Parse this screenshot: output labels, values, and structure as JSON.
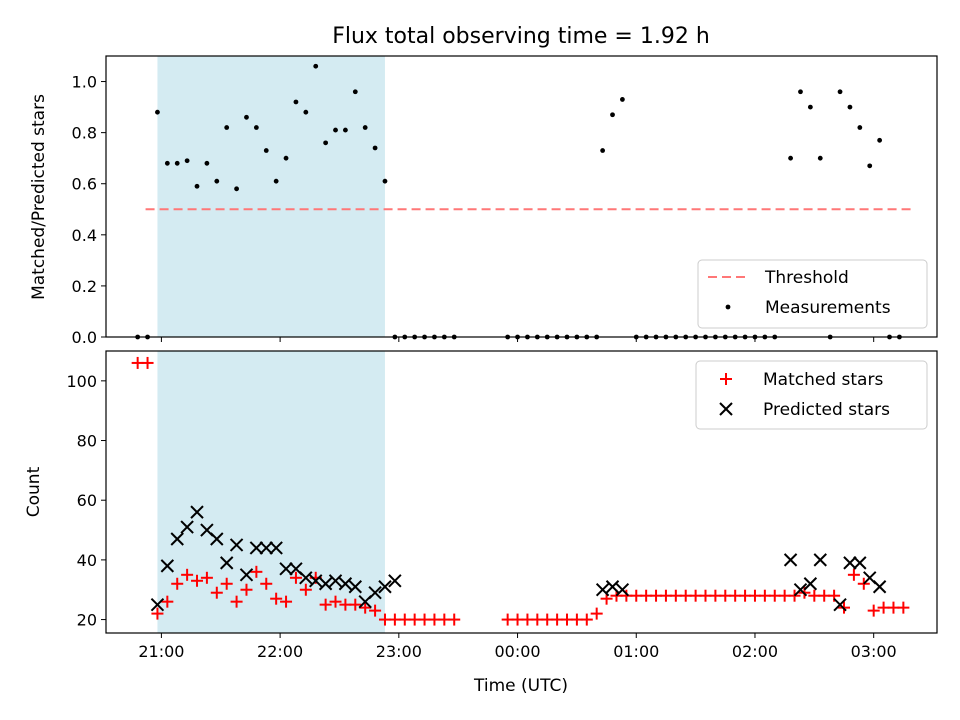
{
  "chart_data": {
    "title": "Flux total observing time = 1.92 h",
    "xlabel": "Time (UTC)",
    "x_ticks": [
      "21:00",
      "22:00",
      "23:00",
      "00:00",
      "01:00",
      "02:00",
      "03:00"
    ],
    "xlim": [
      "20:32",
      "03:32"
    ],
    "highlight_span": {
      "start": "20:58",
      "end": "22:53",
      "color": "#add8e6"
    },
    "panels": [
      {
        "type": "scatter",
        "ylabel": "Matched/Predicted stars",
        "ylim": [
          0,
          1.1
        ],
        "y_ticks": [
          "0.0",
          "0.2",
          "0.4",
          "0.6",
          "0.8",
          "1.0"
        ],
        "legend_position": "lower-right",
        "threshold": {
          "name": "Threshold",
          "value": 0.5,
          "x_start": "20:52",
          "x_end": "03:20",
          "color": "#ff7777"
        },
        "series": [
          {
            "name": "Measurements",
            "marker": "dot",
            "color": "#000000",
            "points": [
              [
                "20:48",
                0
              ],
              [
                "20:53",
                0
              ],
              [
                "20:58",
                0.88
              ],
              [
                "21:03",
                0.68
              ],
              [
                "21:08",
                0.68
              ],
              [
                "21:13",
                0.69
              ],
              [
                "21:18",
                0.59
              ],
              [
                "21:23",
                0.68
              ],
              [
                "21:28",
                0.61
              ],
              [
                "21:33",
                0.82
              ],
              [
                "21:38",
                0.58
              ],
              [
                "21:43",
                0.86
              ],
              [
                "21:48",
                0.82
              ],
              [
                "21:53",
                0.73
              ],
              [
                "21:58",
                0.61
              ],
              [
                "22:03",
                0.7
              ],
              [
                "22:08",
                0.92
              ],
              [
                "22:13",
                0.88
              ],
              [
                "22:18",
                1.06
              ],
              [
                "22:23",
                0.76
              ],
              [
                "22:28",
                0.81
              ],
              [
                "22:33",
                0.81
              ],
              [
                "22:38",
                0.96
              ],
              [
                "22:43",
                0.82
              ],
              [
                "22:48",
                0.74
              ],
              [
                "22:53",
                0.61
              ],
              [
                "22:58",
                0
              ],
              [
                "23:03",
                0
              ],
              [
                "23:08",
                0
              ],
              [
                "23:13",
                0
              ],
              [
                "23:18",
                0
              ],
              [
                "23:23",
                0
              ],
              [
                "23:28",
                0
              ],
              [
                "23:55",
                0
              ],
              [
                "00:00",
                0
              ],
              [
                "00:05",
                0
              ],
              [
                "00:10",
                0
              ],
              [
                "00:15",
                0
              ],
              [
                "00:20",
                0
              ],
              [
                "00:25",
                0
              ],
              [
                "00:30",
                0
              ],
              [
                "00:35",
                0
              ],
              [
                "00:40",
                0
              ],
              [
                "00:43",
                0.73
              ],
              [
                "00:48",
                0.87
              ],
              [
                "00:53",
                0.93
              ],
              [
                "01:00",
                0
              ],
              [
                "01:05",
                0
              ],
              [
                "01:10",
                0
              ],
              [
                "01:15",
                0
              ],
              [
                "01:20",
                0
              ],
              [
                "01:25",
                0
              ],
              [
                "01:30",
                0
              ],
              [
                "01:35",
                0
              ],
              [
                "01:40",
                0
              ],
              [
                "01:45",
                0
              ],
              [
                "01:50",
                0
              ],
              [
                "01:55",
                0
              ],
              [
                "02:00",
                0
              ],
              [
                "02:05",
                0
              ],
              [
                "02:10",
                0
              ],
              [
                "02:18",
                0.7
              ],
              [
                "02:23",
                0.96
              ],
              [
                "02:28",
                0.9
              ],
              [
                "02:33",
                0.7
              ],
              [
                "02:38",
                0
              ],
              [
                "02:43",
                0.96
              ],
              [
                "02:48",
                0.9
              ],
              [
                "02:53",
                0.82
              ],
              [
                "02:58",
                0.67
              ],
              [
                "03:03",
                0.77
              ],
              [
                "03:08",
                0
              ],
              [
                "03:13",
                0
              ]
            ]
          }
        ]
      },
      {
        "type": "scatter",
        "ylabel": "Count",
        "ylim": [
          15.5,
          110
        ],
        "y_ticks": [
          "20",
          "40",
          "60",
          "80",
          "100"
        ],
        "legend_position": "upper-right",
        "series": [
          {
            "name": "Matched stars",
            "marker": "plus",
            "color": "#ff0000",
            "points": [
              [
                "20:48",
                106
              ],
              [
                "20:53",
                106
              ],
              [
                "20:58",
                22
              ],
              [
                "21:03",
                26
              ],
              [
                "21:08",
                32
              ],
              [
                "21:13",
                35
              ],
              [
                "21:18",
                33
              ],
              [
                "21:23",
                34
              ],
              [
                "21:28",
                29
              ],
              [
                "21:33",
                32
              ],
              [
                "21:38",
                26
              ],
              [
                "21:43",
                30
              ],
              [
                "21:48",
                36
              ],
              [
                "21:53",
                32
              ],
              [
                "21:58",
                27
              ],
              [
                "22:03",
                26
              ],
              [
                "22:08",
                34
              ],
              [
                "22:13",
                30
              ],
              [
                "22:18",
                34
              ],
              [
                "22:23",
                25
              ],
              [
                "22:28",
                26
              ],
              [
                "22:33",
                25
              ],
              [
                "22:38",
                25
              ],
              [
                "22:43",
                24
              ],
              [
                "22:48",
                23
              ],
              [
                "22:53",
                20
              ],
              [
                "22:58",
                20
              ],
              [
                "23:03",
                20
              ],
              [
                "23:08",
                20
              ],
              [
                "23:13",
                20
              ],
              [
                "23:18",
                20
              ],
              [
                "23:23",
                20
              ],
              [
                "23:28",
                20
              ],
              [
                "23:55",
                20
              ],
              [
                "00:00",
                20
              ],
              [
                "00:05",
                20
              ],
              [
                "00:10",
                20
              ],
              [
                "00:15",
                20
              ],
              [
                "00:20",
                20
              ],
              [
                "00:25",
                20
              ],
              [
                "00:30",
                20
              ],
              [
                "00:35",
                20
              ],
              [
                "00:40",
                22
              ],
              [
                "00:45",
                27
              ],
              [
                "00:50",
                28
              ],
              [
                "00:55",
                28
              ],
              [
                "01:00",
                28
              ],
              [
                "01:05",
                28
              ],
              [
                "01:10",
                28
              ],
              [
                "01:15",
                28
              ],
              [
                "01:20",
                28
              ],
              [
                "01:25",
                28
              ],
              [
                "01:30",
                28
              ],
              [
                "01:35",
                28
              ],
              [
                "01:40",
                28
              ],
              [
                "01:45",
                28
              ],
              [
                "01:50",
                28
              ],
              [
                "01:55",
                28
              ],
              [
                "02:00",
                28
              ],
              [
                "02:05",
                28
              ],
              [
                "02:10",
                28
              ],
              [
                "02:15",
                28
              ],
              [
                "02:20",
                28
              ],
              [
                "02:25",
                29
              ],
              [
                "02:30",
                28
              ],
              [
                "02:35",
                28
              ],
              [
                "02:40",
                28
              ],
              [
                "02:45",
                24
              ],
              [
                "02:50",
                35
              ],
              [
                "02:55",
                32
              ],
              [
                "03:00",
                23
              ],
              [
                "03:05",
                24
              ],
              [
                "03:10",
                24
              ],
              [
                "03:15",
                24
              ]
            ]
          },
          {
            "name": "Predicted stars",
            "marker": "x",
            "color": "#000000",
            "points": [
              [
                "20:58",
                25
              ],
              [
                "21:03",
                38
              ],
              [
                "21:08",
                47
              ],
              [
                "21:13",
                51
              ],
              [
                "21:18",
                56
              ],
              [
                "21:23",
                50
              ],
              [
                "21:28",
                47
              ],
              [
                "21:33",
                39
              ],
              [
                "21:38",
                45
              ],
              [
                "21:43",
                35
              ],
              [
                "21:48",
                44
              ],
              [
                "21:53",
                44
              ],
              [
                "21:58",
                44
              ],
              [
                "22:03",
                37
              ],
              [
                "22:08",
                37
              ],
              [
                "22:13",
                34
              ],
              [
                "22:18",
                33
              ],
              [
                "22:23",
                32
              ],
              [
                "22:28",
                33
              ],
              [
                "22:33",
                32
              ],
              [
                "22:38",
                31
              ],
              [
                "22:43",
                26
              ],
              [
                "22:48",
                29
              ],
              [
                "22:53",
                31
              ],
              [
                "22:58",
                33
              ],
              [
                "00:43",
                30
              ],
              [
                "00:48",
                31
              ],
              [
                "00:53",
                30
              ],
              [
                "02:18",
                40
              ],
              [
                "02:23",
                30
              ],
              [
                "02:28",
                32
              ],
              [
                "02:33",
                40
              ],
              [
                "02:43",
                25
              ],
              [
                "02:48",
                39
              ],
              [
                "02:53",
                39
              ],
              [
                "02:58",
                34
              ],
              [
                "03:03",
                31
              ]
            ]
          }
        ]
      }
    ]
  }
}
